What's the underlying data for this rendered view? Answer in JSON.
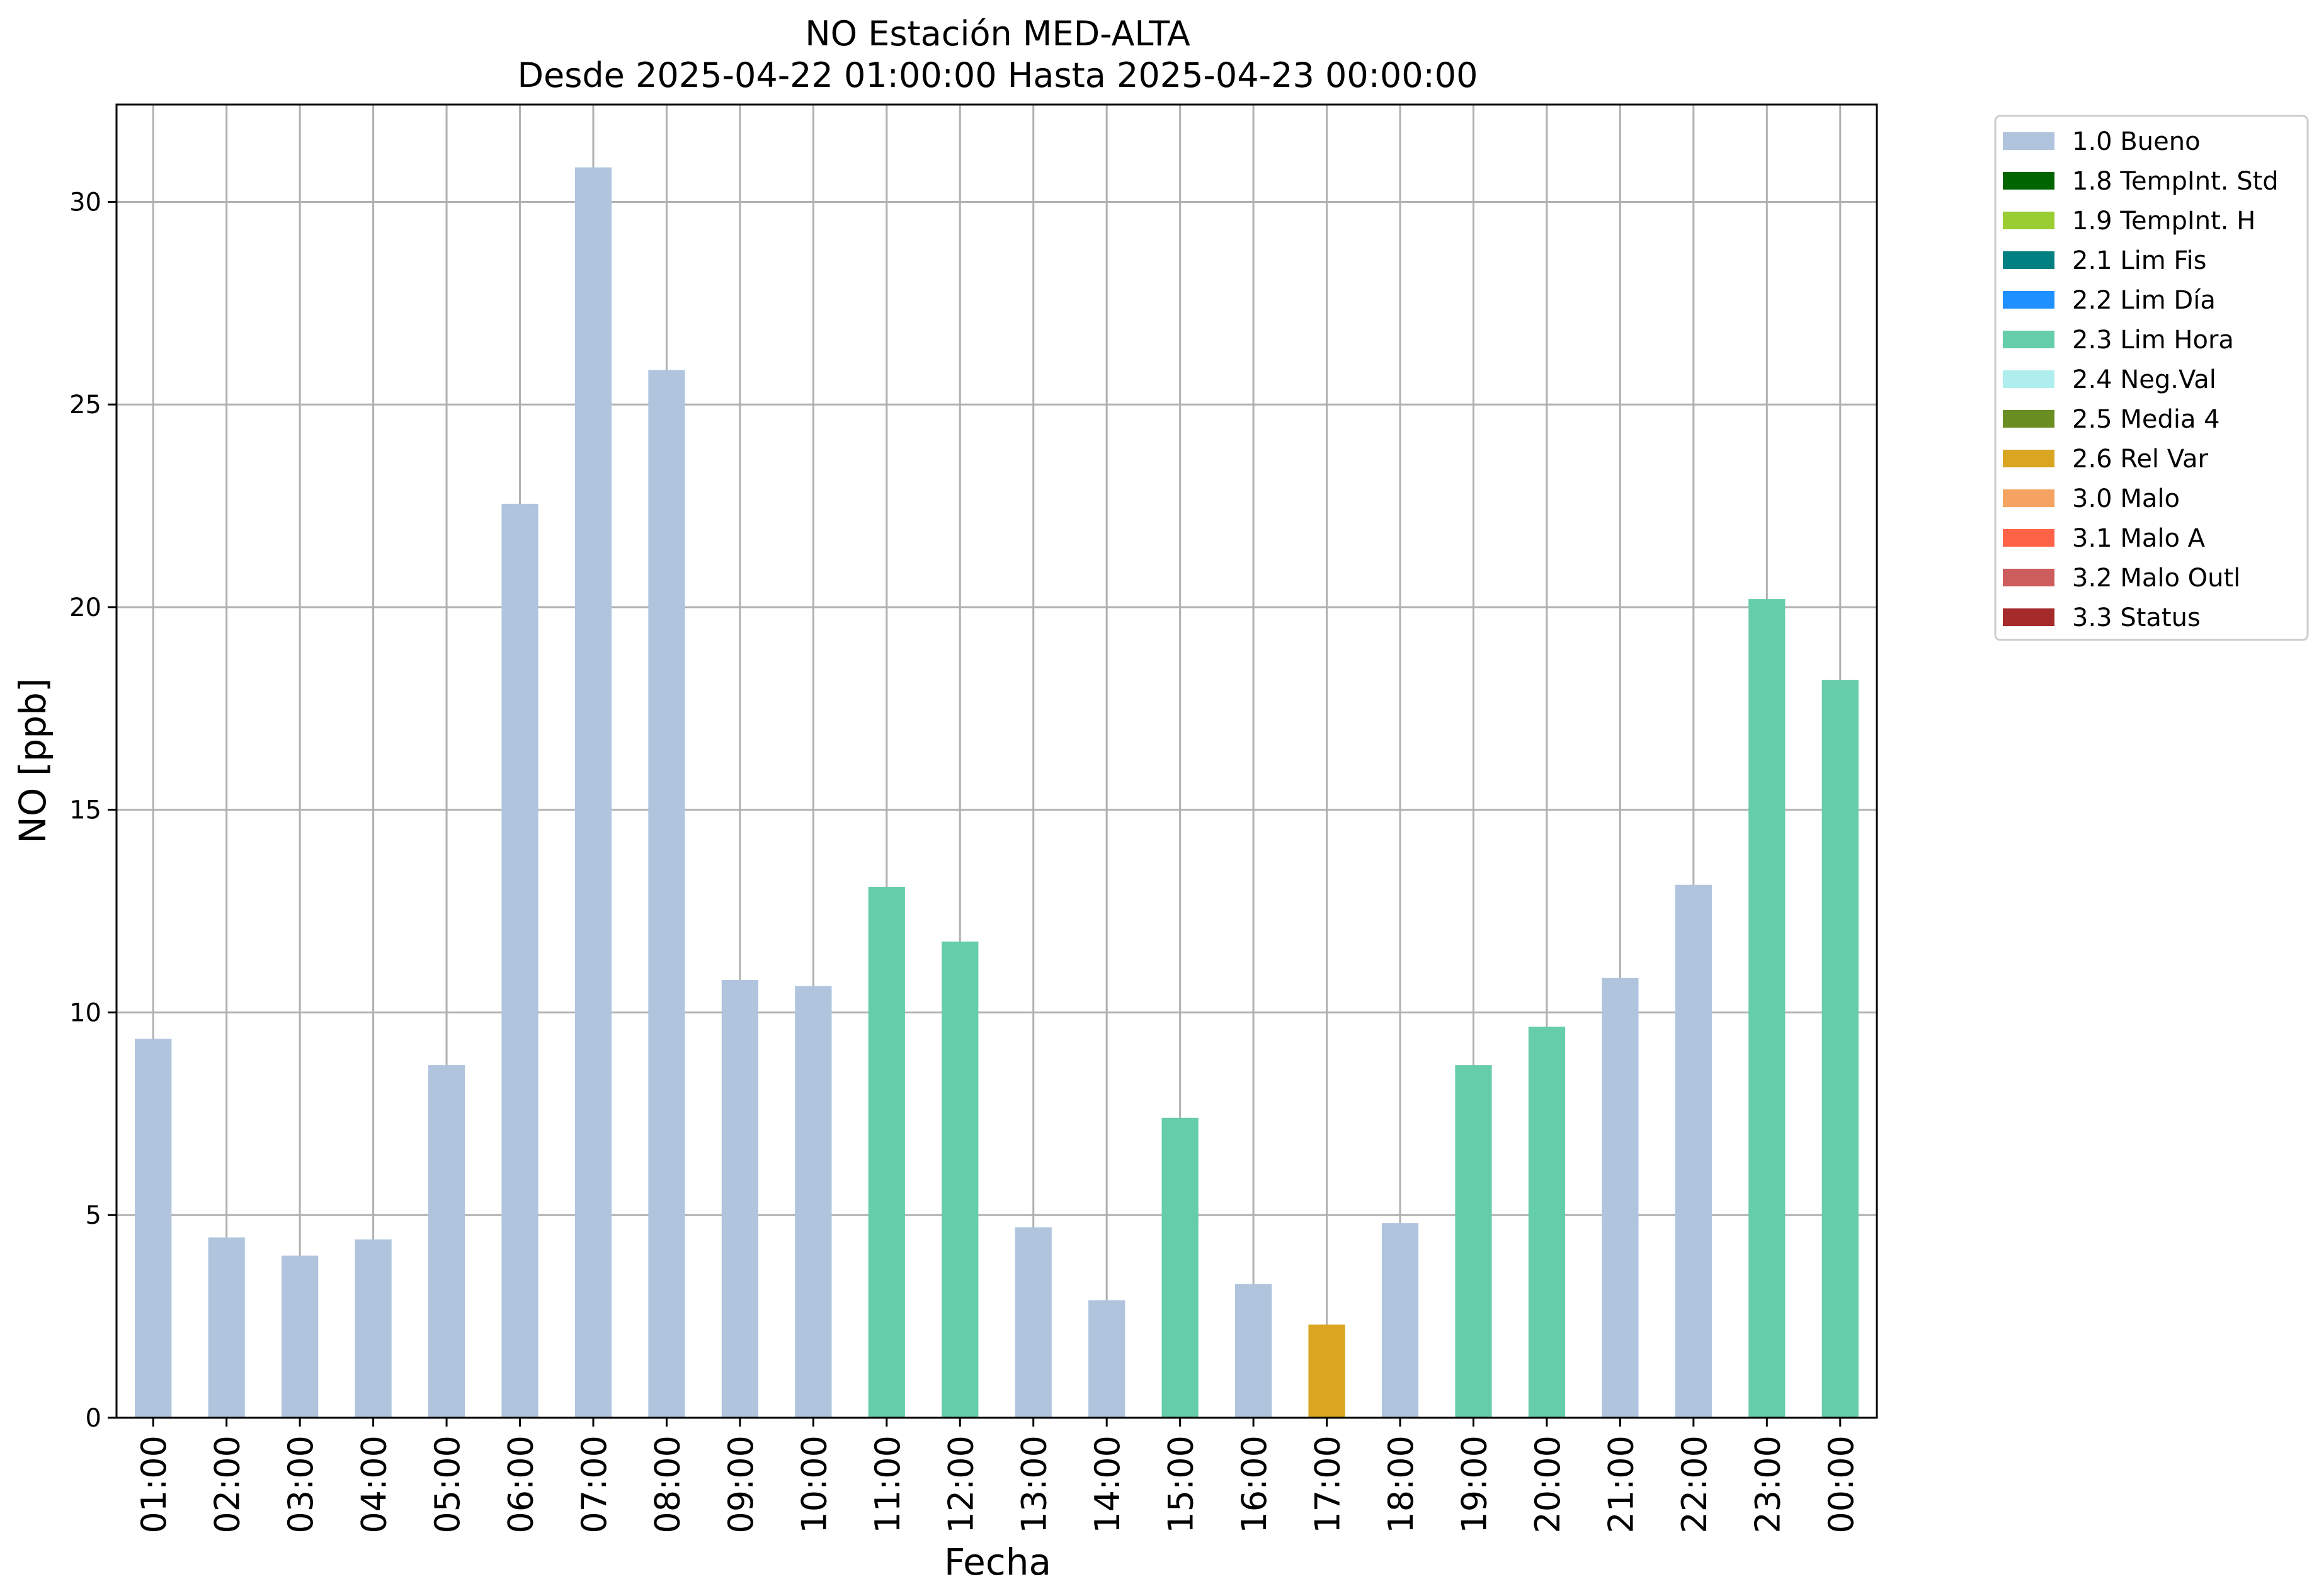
{
  "chart_data": {
    "type": "bar",
    "title": "NO Estación MED-ALTA",
    "subtitle": "Desde 2025-04-22 01:00:00 Hasta 2025-04-23 00:00:00",
    "xlabel": "Fecha",
    "ylabel": "NO [ppb]",
    "ylim": [
      0,
      32.4
    ],
    "yticks": [
      0,
      5,
      10,
      15,
      20,
      25,
      30
    ],
    "grid": true,
    "legend_position": "outside-right-top",
    "categories": [
      "01:00",
      "02:00",
      "03:00",
      "04:00",
      "05:00",
      "06:00",
      "07:00",
      "08:00",
      "09:00",
      "10:00",
      "11:00",
      "12:00",
      "13:00",
      "14:00",
      "15:00",
      "16:00",
      "17:00",
      "18:00",
      "19:00",
      "20:00",
      "21:00",
      "22:00",
      "23:00",
      "00:00"
    ],
    "values": [
      9.35,
      4.45,
      4.0,
      4.4,
      8.7,
      22.55,
      30.85,
      25.85,
      10.8,
      10.65,
      13.1,
      11.75,
      4.7,
      2.9,
      7.4,
      3.3,
      2.3,
      4.8,
      8.7,
      9.65,
      10.85,
      13.15,
      20.2,
      18.2
    ],
    "flags": [
      "1.0 Bueno",
      "1.0 Bueno",
      "1.0 Bueno",
      "1.0 Bueno",
      "1.0 Bueno",
      "1.0 Bueno",
      "1.0 Bueno",
      "1.0 Bueno",
      "1.0 Bueno",
      "1.0 Bueno",
      "2.3 Lim Hora",
      "2.3 Lim Hora",
      "1.0 Bueno",
      "1.0 Bueno",
      "2.3 Lim Hora",
      "1.0 Bueno",
      "2.6 Rel Var",
      "1.0 Bueno",
      "2.3 Lim Hora",
      "2.3 Lim Hora",
      "1.0 Bueno",
      "1.0 Bueno",
      "2.3 Lim Hora",
      "2.3 Lim Hora"
    ],
    "legend": [
      {
        "label": "1.0 Bueno",
        "color": "#b0c4de"
      },
      {
        "label": "1.8 TempInt. Std",
        "color": "#006400"
      },
      {
        "label": "1.9 TempInt. H",
        "color": "#9acd32"
      },
      {
        "label": "2.1 Lim Fis",
        "color": "#008080"
      },
      {
        "label": "2.2 Lim Día",
        "color": "#1e90ff"
      },
      {
        "label": "2.3 Lim Hora",
        "color": "#66cdaa"
      },
      {
        "label": "2.4 Neg.Val",
        "color": "#afeeee"
      },
      {
        "label": "2.5 Media 4",
        "color": "#6b8e23"
      },
      {
        "label": "2.6 Rel Var",
        "color": "#daa520"
      },
      {
        "label": "3.0 Malo",
        "color": "#f4a460"
      },
      {
        "label": "3.1 Malo A",
        "color": "#ff6347"
      },
      {
        "label": "3.2 Malo Outl",
        "color": "#cd5c5c"
      },
      {
        "label": "3.3 Status",
        "color": "#a52a2a"
      }
    ]
  }
}
